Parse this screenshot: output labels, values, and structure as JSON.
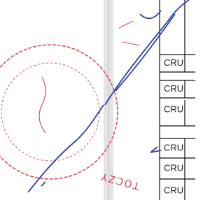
{
  "table": {
    "rows": [
      [
        "CRU"
      ],
      [
        "CRU"
      ],
      [
        "CRU"
      ],
      [
        "CRU"
      ],
      [
        "CRU"
      ],
      [
        "CRU"
      ]
    ]
  },
  "stamp": {
    "text": "TOCZY"
  }
}
